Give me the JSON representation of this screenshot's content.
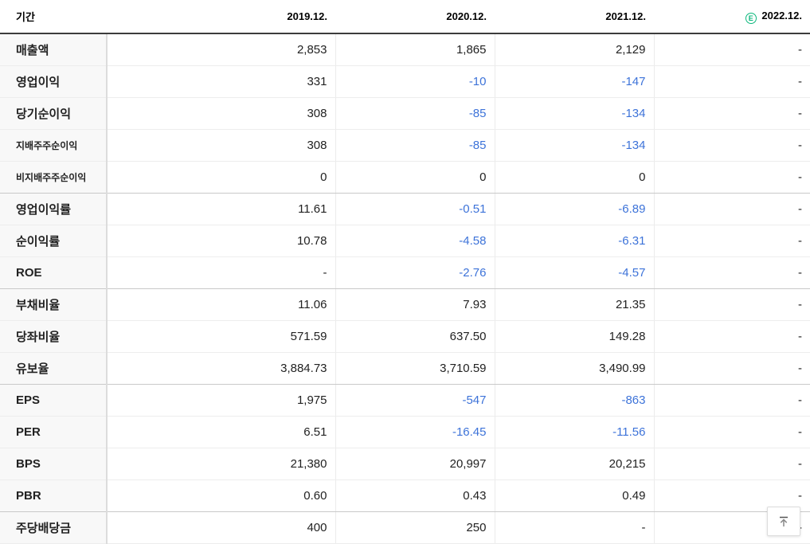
{
  "table": {
    "header": {
      "period_label": "기간",
      "columns": [
        "2019.12.",
        "2020.12.",
        "2021.12.",
        "2022.12."
      ],
      "estimate_badge": "E"
    },
    "rows": [
      {
        "label": "매출액",
        "values": [
          "2,853",
          "1,865",
          "2,129",
          "-"
        ]
      },
      {
        "label": "영업이익",
        "values": [
          "331",
          "-10",
          "-147",
          "-"
        ]
      },
      {
        "label": "당기순이익",
        "values": [
          "308",
          "-85",
          "-134",
          "-"
        ]
      },
      {
        "label": "지배주주순이익",
        "values": [
          "308",
          "-85",
          "-134",
          "-"
        ],
        "sub": true
      },
      {
        "label": "비지배주주순이익",
        "values": [
          "0",
          "0",
          "0",
          "-"
        ],
        "sub": true,
        "group_end": true
      },
      {
        "label": "영업이익률",
        "values": [
          "11.61",
          "-0.51",
          "-6.89",
          "-"
        ]
      },
      {
        "label": "순이익률",
        "values": [
          "10.78",
          "-4.58",
          "-6.31",
          "-"
        ]
      },
      {
        "label": "ROE",
        "values": [
          "-",
          "-2.76",
          "-4.57",
          "-"
        ],
        "group_end": true
      },
      {
        "label": "부채비율",
        "values": [
          "11.06",
          "7.93",
          "21.35",
          "-"
        ]
      },
      {
        "label": "당좌비율",
        "values": [
          "571.59",
          "637.50",
          "149.28",
          "-"
        ]
      },
      {
        "label": "유보율",
        "values": [
          "3,884.73",
          "3,710.59",
          "3,490.99",
          "-"
        ],
        "group_end": true
      },
      {
        "label": "EPS",
        "values": [
          "1,975",
          "-547",
          "-863",
          "-"
        ]
      },
      {
        "label": "PER",
        "values": [
          "6.51",
          "-16.45",
          "-11.56",
          "-"
        ]
      },
      {
        "label": "BPS",
        "values": [
          "21,380",
          "20,997",
          "20,215",
          "-"
        ]
      },
      {
        "label": "PBR",
        "values": [
          "0.60",
          "0.43",
          "0.49",
          "-"
        ],
        "group_end": true
      },
      {
        "label": "주당배당금",
        "values": [
          "400",
          "250",
          "-",
          "-"
        ]
      }
    ]
  },
  "colors": {
    "negative_value": "#3d73d9",
    "estimate_green": "#0cb77c",
    "header_border": "#3c3c3c"
  }
}
